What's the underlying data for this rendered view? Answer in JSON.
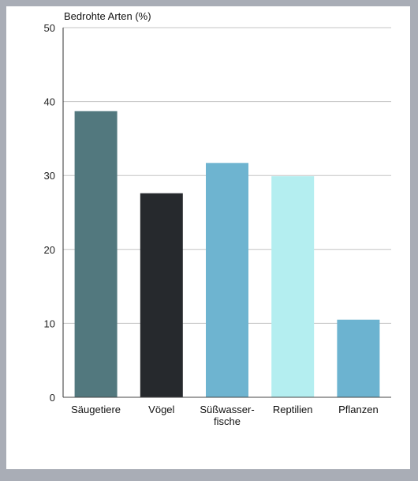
{
  "chart_data": {
    "type": "bar",
    "ylabel": "Bedrohte Arten (%)",
    "xlabel": "",
    "ylim": [
      0,
      50
    ],
    "yticks": [
      0,
      10,
      20,
      30,
      40,
      50
    ],
    "grid": true,
    "categories": [
      [
        "Säugetiere"
      ],
      [
        "Vögel"
      ],
      [
        "Süßwasser-",
        "fische"
      ],
      [
        "Reptilien"
      ],
      [
        "Pflanzen"
      ]
    ],
    "values": [
      38.7,
      27.6,
      31.7,
      29.9,
      10.5
    ],
    "colors": [
      "#52787e",
      "#26292d",
      "#6eb4d0",
      "#b4eef0",
      "#6cb3d0"
    ]
  }
}
